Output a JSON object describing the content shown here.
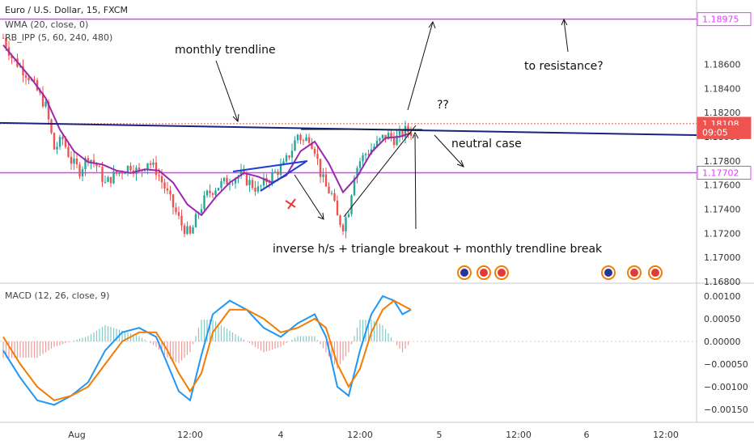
{
  "chart_data": [
    {
      "type": "candlestick",
      "title": "Euro / U.S. Dollar, 15, FXCM",
      "indicators": [
        "WMA (20, close, 0)",
        "RB_IPP (5, 60, 240, 480)"
      ],
      "ylim": [
        1.168,
        1.191
      ],
      "yticks": [
        "1.17000",
        "1.17200",
        "1.17400",
        "1.17600",
        "1.17800",
        "1.18000",
        "1.18200",
        "1.18400",
        "1.18600"
      ],
      "ytick_values": [
        1.17,
        1.172,
        1.174,
        1.176,
        1.178,
        1.18,
        1.182,
        1.184,
        1.186
      ],
      "bottom_tick": "1.16800",
      "bottom_tick_value": 1.168,
      "price_tags": [
        {
          "label": "1.18975",
          "value": 1.18975,
          "color": "#e040fb"
        },
        {
          "label": "1.18108",
          "value": 1.18108,
          "color": "#ef5350"
        },
        {
          "label": "09:05",
          "value": 1.18038,
          "color": "#ef5350"
        },
        {
          "label": "1.17702",
          "value": 1.17702,
          "color": "#e040fb"
        }
      ],
      "horizontal_lines": [
        {
          "name": "resistance",
          "value": 1.18975,
          "color": "#e040fb"
        },
        {
          "name": "support",
          "value": 1.17702,
          "color": "#e040fb"
        },
        {
          "name": "last-price",
          "value": 1.18108,
          "color": "#ef5350",
          "style": "dotted"
        }
      ],
      "trendline": {
        "from": [
          0,
          1.18115
        ],
        "to": [
          144,
          1.18055
        ],
        "color": "#1a237e"
      },
      "xticks": [
        "Aug",
        "12:00",
        "4",
        "12:00",
        "5",
        "12:00",
        "6",
        "12:00"
      ],
      "xtick_index": [
        26,
        66,
        98,
        126,
        154,
        182,
        206,
        234
      ],
      "last_index": 144,
      "wma": [
        [
          0,
          1.1876
        ],
        [
          5,
          1.1862
        ],
        [
          10,
          1.1848
        ],
        [
          15,
          1.1832
        ],
        [
          20,
          1.1806
        ],
        [
          25,
          1.1788
        ],
        [
          30,
          1.1779
        ],
        [
          35,
          1.1777
        ],
        [
          40,
          1.1772
        ],
        [
          45,
          1.177
        ],
        [
          50,
          1.1773
        ],
        [
          55,
          1.1772
        ],
        [
          60,
          1.1762
        ],
        [
          65,
          1.1744
        ],
        [
          70,
          1.1735
        ],
        [
          75,
          1.175
        ],
        [
          80,
          1.1762
        ],
        [
          85,
          1.177
        ],
        [
          90,
          1.1767
        ],
        [
          95,
          1.1762
        ],
        [
          100,
          1.1768
        ],
        [
          105,
          1.1788
        ],
        [
          110,
          1.1796
        ],
        [
          115,
          1.1778
        ],
        [
          120,
          1.1754
        ],
        [
          125,
          1.1767
        ],
        [
          130,
          1.1787
        ],
        [
          135,
          1.1799
        ],
        [
          140,
          1.18
        ],
        [
          144,
          1.1803
        ]
      ],
      "price_path": [
        [
          0,
          1.1882
        ],
        [
          3,
          1.1866
        ],
        [
          6,
          1.1858
        ],
        [
          9,
          1.185
        ],
        [
          12,
          1.1838
        ],
        [
          15,
          1.1825
        ],
        [
          18,
          1.179
        ],
        [
          21,
          1.1798
        ],
        [
          24,
          1.178
        ],
        [
          27,
          1.1772
        ],
        [
          30,
          1.1784
        ],
        [
          33,
          1.1776
        ],
        [
          36,
          1.1761
        ],
        [
          39,
          1.1768
        ],
        [
          42,
          1.1772
        ],
        [
          45,
          1.1776
        ],
        [
          48,
          1.177
        ],
        [
          51,
          1.178
        ],
        [
          54,
          1.1772
        ],
        [
          57,
          1.1758
        ],
        [
          60,
          1.1742
        ],
        [
          63,
          1.1727
        ],
        [
          66,
          1.1718
        ],
        [
          69,
          1.1738
        ],
        [
          72,
          1.1752
        ],
        [
          75,
          1.1758
        ],
        [
          78,
          1.1762
        ],
        [
          81,
          1.1766
        ],
        [
          84,
          1.1768
        ],
        [
          87,
          1.1762
        ],
        [
          90,
          1.1756
        ],
        [
          93,
          1.1764
        ],
        [
          96,
          1.177
        ],
        [
          99,
          1.1776
        ],
        [
          102,
          1.179
        ],
        [
          104,
          1.1802
        ],
        [
          106,
          1.1796
        ],
        [
          108,
          1.18
        ],
        [
          110,
          1.179
        ],
        [
          112,
          1.177
        ],
        [
          114,
          1.1758
        ],
        [
          116,
          1.1752
        ],
        [
          118,
          1.1733
        ],
        [
          120,
          1.1726
        ],
        [
          122,
          1.174
        ],
        [
          124,
          1.177
        ],
        [
          126,
          1.178
        ],
        [
          128,
          1.1786
        ],
        [
          130,
          1.179
        ],
        [
          132,
          1.1794
        ],
        [
          134,
          1.1799
        ],
        [
          136,
          1.1801
        ],
        [
          138,
          1.1798
        ],
        [
          140,
          1.18
        ],
        [
          142,
          1.1805
        ],
        [
          144,
          1.1804
        ]
      ],
      "annotations": [
        "monthly trendline",
        "to resistance?",
        "??",
        "neutral case",
        "inverse h/s + triangle breakout + monthly trendline break"
      ]
    },
    {
      "type": "line",
      "title": "MACD (12, 26, close, 9)",
      "ylim": [
        -0.00175,
        0.00125
      ],
      "yticks": [
        "0.00100",
        "0.00050",
        "0.00000",
        "−0.00050",
        "−0.00100",
        "−0.00150"
      ],
      "ytick_values": [
        0.001,
        0.0005,
        0.0,
        -0.0005,
        -0.001,
        -0.0015
      ],
      "series": [
        {
          "color": "#2196f3",
          "x": [
            0,
            6,
            12,
            18,
            24,
            30,
            36,
            42,
            48,
            54,
            58,
            62,
            66,
            70,
            74,
            80,
            86,
            92,
            98,
            104,
            110,
            114,
            118,
            122,
            126,
            130,
            134,
            138,
            141,
            144
          ],
          "values": [
            -0.0002,
            -0.0008,
            -0.0013,
            -0.0014,
            -0.0012,
            -0.0009,
            -0.0002,
            0.0002,
            0.0003,
            0.0001,
            -0.0005,
            -0.0011,
            -0.0013,
            -0.0003,
            0.0006,
            0.0009,
            0.0007,
            0.0003,
            0.0001,
            0.0004,
            0.0006,
            0.0001,
            -0.001,
            -0.0012,
            -0.0002,
            0.0006,
            0.001,
            0.0009,
            0.0006,
            0.0007
          ]
        },
        {
          "color": "#f57c00",
          "x": [
            0,
            6,
            12,
            18,
            24,
            30,
            36,
            42,
            48,
            54,
            58,
            62,
            66,
            70,
            74,
            80,
            86,
            92,
            98,
            104,
            110,
            114,
            118,
            122,
            126,
            130,
            134,
            138,
            141,
            144
          ],
          "values": [
            0.0001,
            -0.0005,
            -0.001,
            -0.0013,
            -0.0012,
            -0.001,
            -0.0005,
            0.0,
            0.0002,
            0.0002,
            -0.0002,
            -0.0007,
            -0.0011,
            -0.0007,
            0.0002,
            0.0007,
            0.0007,
            0.0005,
            0.0002,
            0.0003,
            0.0005,
            0.0003,
            -0.0005,
            -0.001,
            -0.0006,
            0.0002,
            0.0007,
            0.0009,
            0.0008,
            0.0007
          ]
        }
      ]
    }
  ]
}
